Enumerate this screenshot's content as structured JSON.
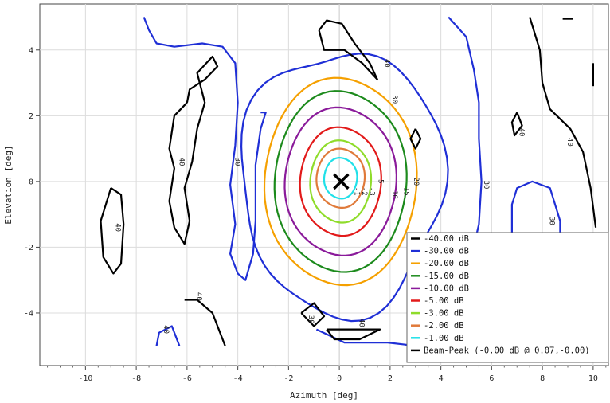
{
  "chart_data": {
    "type": "contour",
    "title": "",
    "xlabel": "Azimuth [deg]",
    "ylabel": "Elevation [deg]",
    "xlim": [
      -11.8,
      10.6
    ],
    "ylim": [
      -5.6,
      5.4
    ],
    "xticks": [
      -10,
      -8,
      -6,
      -4,
      -2,
      0,
      2,
      4,
      6,
      8,
      10
    ],
    "yticks": [
      -4,
      -2,
      0,
      2,
      4
    ],
    "grid": true,
    "legend_position": "bottom-right",
    "levels": [
      {
        "label": "-40.00 dB",
        "color": "#000000"
      },
      {
        "label": "-30.00 dB",
        "color": "#1f2fd6"
      },
      {
        "label": "-20.00 dB",
        "color": "#f5a000"
      },
      {
        "label": "-15.00 dB",
        "color": "#1c8a1c"
      },
      {
        "label": "-10.00 dB",
        "color": "#8a1a9a"
      },
      {
        "label": "-5.00 dB",
        "color": "#e21a1a"
      },
      {
        "label": "-3.00 dB",
        "color": "#8fdc2a"
      },
      {
        "label": "-2.00 dB",
        "color": "#e07a3a"
      },
      {
        "label": "-1.00 dB",
        "color": "#20e0e8"
      }
    ],
    "beam_peak": {
      "label": "Beam-Peak (-0.00 dB @ 0.07,-0.00)",
      "color": "#000000",
      "x": 0.07,
      "y": 0.0
    },
    "main_lobe": [
      {
        "level": "-1.00 dB",
        "center": [
          0.05,
          0.1
        ],
        "semi_axes": [
          0.65,
          0.62
        ]
      },
      {
        "level": "-2.00 dB",
        "center": [
          0.05,
          0.1
        ],
        "semi_axes": [
          0.95,
          0.9
        ]
      },
      {
        "level": "-3.00 dB",
        "center": [
          0.05,
          0.0
        ],
        "semi_axes": [
          1.2,
          1.25
        ]
      },
      {
        "level": "-5.00 dB",
        "center": [
          0.05,
          0.0
        ],
        "semi_axes": [
          1.6,
          1.65
        ]
      },
      {
        "level": "-10.00 dB",
        "center": [
          0.05,
          0.0
        ],
        "semi_axes": [
          2.2,
          2.25
        ]
      },
      {
        "level": "-15.00 dB",
        "center": [
          0.05,
          0.0
        ],
        "semi_axes": [
          2.6,
          2.75
        ]
      },
      {
        "level": "-20.00 dB",
        "center": [
          0.05,
          0.0
        ],
        "semi_axes": [
          3.0,
          3.15
        ]
      },
      {
        "level": "-30.00 dB",
        "center": [
          0.1,
          0.0
        ],
        "semi_axes": [
          4.0,
          4.0
        ]
      }
    ],
    "contour_labels": [
      {
        "text": "-1",
        "x": 0.6,
        "y": -0.3
      },
      {
        "text": "-2",
        "x": 0.9,
        "y": -0.3
      },
      {
        "text": "-3",
        "x": 1.2,
        "y": -0.3
      },
      {
        "text": "5",
        "x": 1.55,
        "y": 0.0
      },
      {
        "text": "10",
        "x": 2.1,
        "y": -0.4
      },
      {
        "text": "15",
        "x": 2.55,
        "y": -0.3
      },
      {
        "text": "20",
        "x": 2.95,
        "y": 0.0
      },
      {
        "text": "30",
        "x": -4.1,
        "y": 0.6
      },
      {
        "text": "40",
        "x": -6.3,
        "y": 0.6
      },
      {
        "text": "40",
        "x": -8.8,
        "y": -1.4
      },
      {
        "text": "30",
        "x": 2.1,
        "y": 2.5
      },
      {
        "text": "40",
        "x": 1.8,
        "y": 3.6
      },
      {
        "text": "30",
        "x": 5.7,
        "y": -0.1
      },
      {
        "text": "40",
        "x": 7.1,
        "y": 1.5
      },
      {
        "text": "40",
        "x": 9.0,
        "y": 1.2
      },
      {
        "text": "30",
        "x": 8.3,
        "y": -1.2
      },
      {
        "text": "30",
        "x": -1.2,
        "y": -4.2
      },
      {
        "text": "40",
        "x": 0.8,
        "y": -4.3
      },
      {
        "text": "40",
        "x": -5.6,
        "y": -3.5
      },
      {
        "text": "40",
        "x": -6.9,
        "y": -4.5
      }
    ],
    "side_curves": [
      {
        "level": "-30.00 dB",
        "points": [
          [
            -7.7,
            5.0
          ],
          [
            -7.5,
            4.6
          ],
          [
            -7.2,
            4.2
          ],
          [
            -6.5,
            4.1
          ],
          [
            -5.4,
            4.2
          ],
          [
            -4.6,
            4.1
          ],
          [
            -4.1,
            3.6
          ],
          [
            -4.0,
            2.4
          ],
          [
            -4.1,
            1.1
          ],
          [
            -4.3,
            -0.1
          ],
          [
            -4.1,
            -1.3
          ],
          [
            -4.3,
            -2.2
          ],
          [
            -4.0,
            -2.8
          ],
          [
            -3.7,
            -3.0
          ],
          [
            -3.4,
            -2.2
          ],
          [
            -3.3,
            -1.2
          ],
          [
            -3.3,
            0.5
          ],
          [
            -3.1,
            1.6
          ],
          [
            -2.9,
            2.1
          ],
          [
            -3.1,
            2.1
          ]
        ]
      },
      {
        "level": "-30.00 dB",
        "points": [
          [
            4.3,
            5.0
          ],
          [
            5.0,
            4.4
          ],
          [
            5.3,
            3.4
          ],
          [
            5.5,
            2.4
          ],
          [
            5.5,
            1.3
          ],
          [
            5.6,
            0.0
          ],
          [
            5.5,
            -1.3
          ],
          [
            5.2,
            -2.3
          ],
          [
            4.8,
            -3.5
          ],
          [
            4.3,
            -4.8
          ],
          [
            3.9,
            -5.3
          ],
          [
            3.0,
            -5.0
          ],
          [
            1.9,
            -4.9
          ],
          [
            0.2,
            -4.9
          ],
          [
            -0.9,
            -4.5
          ]
        ]
      },
      {
        "level": "-30.00 dB",
        "points": [
          [
            6.8,
            -2.0
          ],
          [
            6.8,
            -0.7
          ],
          [
            7.0,
            -0.2
          ],
          [
            7.6,
            0.0
          ],
          [
            8.3,
            -0.2
          ],
          [
            8.7,
            -1.2
          ],
          [
            8.7,
            -2.0
          ]
        ]
      },
      {
        "level": "-30.00 dB",
        "points": [
          [
            -7.2,
            -5.0
          ],
          [
            -7.1,
            -4.6
          ],
          [
            -6.6,
            -4.4
          ],
          [
            -6.3,
            -5.0
          ]
        ]
      },
      {
        "level": "-40.00 dB",
        "points": [
          [
            -6.0,
            2.4
          ],
          [
            -6.5,
            2.0
          ],
          [
            -6.7,
            1.0
          ],
          [
            -6.5,
            0.4
          ],
          [
            -6.7,
            -0.6
          ],
          [
            -6.5,
            -1.4
          ],
          [
            -6.1,
            -1.9
          ],
          [
            -5.9,
            -1.2
          ],
          [
            -6.1,
            -0.2
          ],
          [
            -5.8,
            0.6
          ],
          [
            -5.6,
            1.6
          ],
          [
            -5.3,
            2.4
          ],
          [
            -5.6,
            3.3
          ],
          [
            -5.0,
            3.8
          ],
          [
            -4.8,
            3.5
          ],
          [
            -5.3,
            3.1
          ],
          [
            -5.9,
            2.8
          ],
          [
            -6.0,
            2.4
          ]
        ]
      },
      {
        "level": "-40.00 dB",
        "points": [
          [
            -9.0,
            -0.2
          ],
          [
            -9.4,
            -1.2
          ],
          [
            -9.3,
            -2.3
          ],
          [
            -8.9,
            -2.8
          ],
          [
            -8.6,
            -2.5
          ],
          [
            -8.5,
            -1.3
          ],
          [
            -8.6,
            -0.4
          ],
          [
            -9.0,
            -0.2
          ]
        ]
      },
      {
        "level": "-40.00 dB",
        "points": [
          [
            -0.8,
            4.6
          ],
          [
            -0.6,
            4.0
          ],
          [
            0.2,
            4.0
          ],
          [
            0.9,
            3.6
          ],
          [
            1.5,
            3.1
          ],
          [
            1.2,
            3.6
          ],
          [
            0.6,
            4.2
          ],
          [
            0.1,
            4.8
          ],
          [
            -0.5,
            4.9
          ],
          [
            -0.8,
            4.6
          ]
        ]
      },
      {
        "level": "-40.00 dB",
        "points": [
          [
            3.0,
            1.6
          ],
          [
            3.2,
            1.3
          ],
          [
            3.0,
            1.0
          ],
          [
            2.8,
            1.3
          ],
          [
            3.0,
            1.6
          ]
        ]
      },
      {
        "level": "-40.00 dB",
        "points": [
          [
            7.0,
            2.1
          ],
          [
            6.8,
            1.8
          ],
          [
            6.9,
            1.4
          ],
          [
            7.2,
            1.7
          ],
          [
            7.0,
            2.1
          ]
        ]
      },
      {
        "level": "-40.00 dB",
        "points": [
          [
            7.5,
            5.0
          ],
          [
            7.9,
            4.0
          ],
          [
            8.0,
            3.0
          ],
          [
            8.3,
            2.2
          ],
          [
            9.1,
            1.6
          ],
          [
            9.6,
            0.9
          ],
          [
            9.9,
            -0.2
          ],
          [
            10.1,
            -1.4
          ]
        ]
      },
      {
        "level": "-40.00 dB",
        "points": [
          [
            -1.5,
            -4.0
          ],
          [
            -1.0,
            -3.7
          ],
          [
            -0.6,
            -4.1
          ],
          [
            -1.0,
            -4.4
          ],
          [
            -1.5,
            -4.0
          ]
        ]
      },
      {
        "level": "-40.00 dB",
        "points": [
          [
            -0.5,
            -4.5
          ],
          [
            0.6,
            -4.5
          ],
          [
            1.6,
            -4.5
          ],
          [
            0.8,
            -4.8
          ],
          [
            -0.2,
            -4.8
          ],
          [
            -0.5,
            -4.5
          ]
        ]
      },
      {
        "level": "-40.00 dB",
        "points": [
          [
            -6.1,
            -3.6
          ],
          [
            -5.6,
            -3.6
          ],
          [
            -5.0,
            -4.0
          ],
          [
            -4.5,
            -5.0
          ]
        ]
      },
      {
        "level": "-40.00 dB",
        "points": [
          [
            8.8,
            4.95
          ],
          [
            9.2,
            4.95
          ]
        ]
      },
      {
        "level": "-40.00 dB",
        "points": [
          [
            10.0,
            3.6
          ],
          [
            10.0,
            2.9
          ]
        ]
      }
    ]
  }
}
